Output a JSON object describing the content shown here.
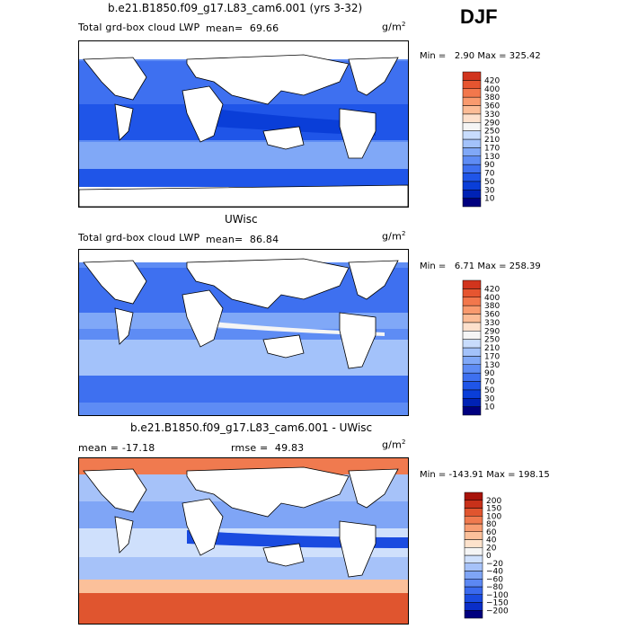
{
  "season": "DJF",
  "colors": {
    "abs_scale": [
      "#00007f",
      "#0022b5",
      "#0a3ed8",
      "#1f55e8",
      "#3e70f0",
      "#5e8cf4",
      "#80a8f7",
      "#a3c2fa",
      "#c8dcfc",
      "#f5f5f5",
      "#fde0cc",
      "#fcbc96",
      "#f99a6e",
      "#f2774c",
      "#e65530",
      "#d1341d",
      "#b0180c",
      "#8a0000"
    ],
    "diff_scale": [
      "#00007f",
      "#0a2ec8",
      "#1a4be0",
      "#3a6aee",
      "#5c88f3",
      "#7fa5f6",
      "#a6c2f9",
      "#cfe0fc",
      "#f5f5f5",
      "#fde2cc",
      "#fbc09a",
      "#f89d72",
      "#f07a4f",
      "#e0552f",
      "#c8311a",
      "#a8130a",
      "#8a0000"
    ]
  },
  "panels": [
    {
      "title": "b.e21.B1850.f09_g17.L83_cam6.001 (yrs 3-32)",
      "variable": "Total grd-box cloud LWP",
      "mean_label": "mean=",
      "mean_value": "69.66",
      "units": "g/m",
      "units_exp": "2",
      "min_label": "Min =",
      "min_value": "2.90",
      "max_label": "Max =",
      "max_value": "325.42",
      "colorbar_labels": [
        "10",
        "30",
        "50",
        "70",
        "90",
        "130",
        "170",
        "210",
        "250",
        "290",
        "330",
        "360",
        "380",
        "400",
        "420"
      ]
    },
    {
      "title": "UWisc",
      "variable": "Total grd-box cloud LWP",
      "mean_label": "mean=",
      "mean_value": "86.84",
      "units": "g/m",
      "units_exp": "2",
      "min_label": "Min =",
      "min_value": "6.71",
      "max_label": "Max =",
      "max_value": "258.39",
      "colorbar_labels": [
        "10",
        "30",
        "50",
        "70",
        "90",
        "130",
        "170",
        "210",
        "250",
        "290",
        "330",
        "360",
        "380",
        "400",
        "420"
      ]
    },
    {
      "title": "b.e21.B1850.f09_g17.L83_cam6.001 - UWisc",
      "mean_label": "mean =",
      "mean_value": "-17.18",
      "rmse_label": "rmse =",
      "rmse_value": "49.83",
      "units": "g/m",
      "units_exp": "2",
      "min_label": "Min =",
      "min_value": "-143.91",
      "max_label": "Max =",
      "max_value": "198.15",
      "colorbar_labels": [
        "−200",
        "−150",
        "−100",
        "−80",
        "−60",
        "−40",
        "−20",
        "0",
        "20",
        "40",
        "60",
        "80",
        "100",
        "150",
        "200"
      ]
    }
  ],
  "chart_data": [
    {
      "type": "heatmap",
      "title": "b.e21.B1850.f09_g17.L83_cam6.001 (yrs 3-32)",
      "subtitle": "Total grd-box cloud LWP",
      "mean": 69.66,
      "min": 2.9,
      "max": 325.42,
      "units": "g/m2",
      "levels": [
        10,
        30,
        50,
        70,
        90,
        130,
        170,
        210,
        250,
        290,
        330,
        360,
        380,
        400,
        420
      ],
      "season": "DJF"
    },
    {
      "type": "heatmap",
      "title": "UWisc",
      "subtitle": "Total grd-box cloud LWP",
      "mean": 86.84,
      "min": 6.71,
      "max": 258.39,
      "units": "g/m2",
      "levels": [
        10,
        30,
        50,
        70,
        90,
        130,
        170,
        210,
        250,
        290,
        330,
        360,
        380,
        400,
        420
      ]
    },
    {
      "type": "heatmap",
      "title": "b.e21.B1850.f09_g17.L83_cam6.001 - UWisc",
      "mean": -17.18,
      "rmse": 49.83,
      "min": -143.91,
      "max": 198.15,
      "units": "g/m2",
      "levels": [
        -200,
        -150,
        -100,
        -80,
        -60,
        -40,
        -20,
        0,
        20,
        40,
        60,
        80,
        100,
        150,
        200
      ]
    }
  ]
}
